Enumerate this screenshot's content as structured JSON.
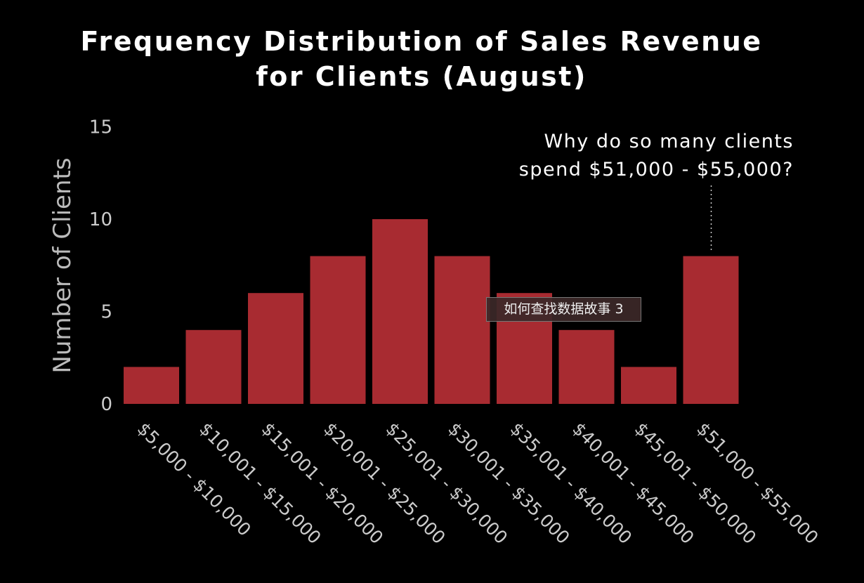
{
  "chart_data": {
    "type": "bar",
    "title_line1": "Frequency Distribution of Sales Revenue",
    "title_line2": "for Clients (August)",
    "xlabel": "",
    "ylabel": "Number of Clients",
    "ylim": [
      0,
      15
    ],
    "yticks": [
      "0",
      "5",
      "10",
      "15"
    ],
    "categories": [
      "$5,000 - $10,000",
      "$10,001 - $15,000",
      "$15,001 - $20,000",
      "$20,001 - $25,000",
      "$25,001 - $30,000",
      "$30,001 - $35,000",
      "$35,001 - $40,000",
      "$40,001 - $45,000",
      "$45,001 - $50,000",
      "$51,000 - $55,000"
    ],
    "values": [
      2,
      4,
      6,
      8,
      10,
      8,
      6,
      4,
      2,
      8
    ],
    "bar_color": "#a82b31",
    "grid": false,
    "annotation": {
      "line1": "Why do so many clients",
      "line2": "spend $51,000 - $55,000?",
      "target_index": 9
    }
  },
  "tooltip": "如何查找数据故事 3"
}
